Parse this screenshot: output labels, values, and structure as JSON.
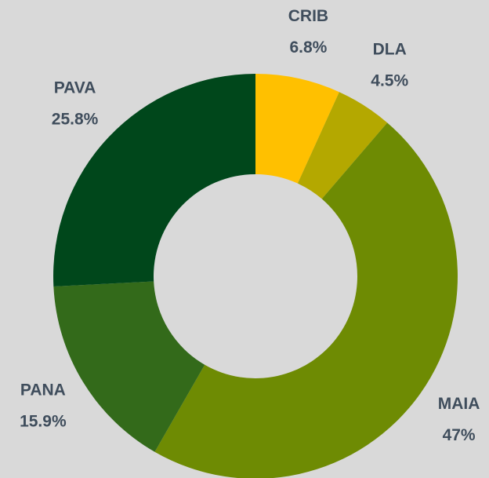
{
  "chart_data": {
    "type": "donut",
    "categories": [
      "CRIB",
      "DLA",
      "MAIA",
      "PANA",
      "PAVA"
    ],
    "values": [
      6.8,
      4.5,
      47,
      15.9,
      25.8
    ],
    "value_labels": [
      "6.8%",
      "4.5%",
      "47%",
      "15.9%",
      "25.8%"
    ],
    "colors": [
      "#ffc000",
      "#b4a800",
      "#6e8b03",
      "#336a1a",
      "#00471b"
    ]
  }
}
